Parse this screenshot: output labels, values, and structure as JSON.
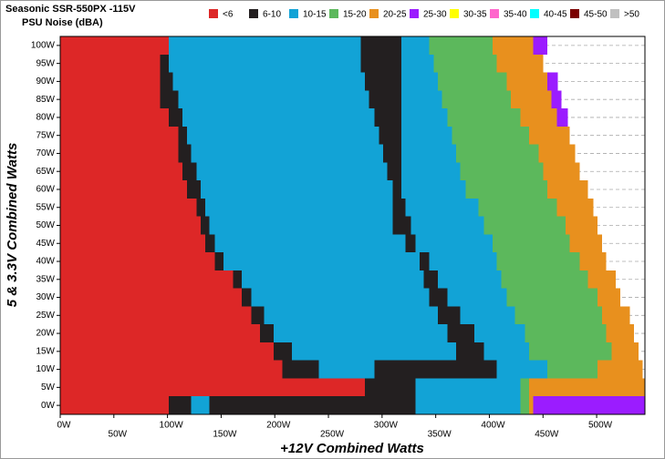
{
  "chart_data": {
    "type": "heatmap",
    "title": "Seasonic SSR-550PX -115V",
    "subtitle": "PSU Noise (dBA)",
    "x_label": "+12V Combined Watts",
    "y_label": "5 & 3.3V Combined Watts",
    "legend": [
      {
        "name": "<6",
        "color": "#dd2727"
      },
      {
        "name": "6-10",
        "color": "#231f20"
      },
      {
        "name": "10-15",
        "color": "#12a3d6"
      },
      {
        "name": "15-20",
        "color": "#5cb85c"
      },
      {
        "name": "20-25",
        "color": "#e8901e"
      },
      {
        "name": "25-30",
        "color": "#9b1cff"
      },
      {
        "name": "30-35",
        "color": "#ffff00"
      },
      {
        "name": "35-40",
        "color": "#ff66cc"
      },
      {
        "name": "40-45",
        "color": "#00ffff"
      },
      {
        "name": "45-50",
        "color": "#7b0000"
      },
      {
        "name": ">50",
        "color": "#c0c0c0"
      }
    ],
    "y": [
      100,
      95,
      90,
      85,
      80,
      75,
      70,
      65,
      60,
      55,
      50,
      45,
      40,
      35,
      30,
      25,
      20,
      15,
      10,
      5,
      0
    ],
    "row_height": 5,
    "segments": [
      {
        "class": 0,
        "values": [
          101,
          93,
          93,
          93,
          101,
          110,
          110,
          114,
          118,
          127,
          131,
          135,
          144,
          161,
          169,
          178,
          186,
          199,
          207,
          284,
          101
        ]
      },
      {
        "class": 1,
        "values": [
          0,
          8,
          12,
          17,
          13,
          8,
          12,
          13,
          13,
          8,
          8,
          9,
          8,
          8,
          9,
          12,
          13,
          17,
          34,
          47,
          21
        ]
      },
      {
        "class": 2,
        "values": [
          179,
          179,
          179,
          178,
          179,
          179,
          179,
          178,
          179,
          175,
          171,
          178,
          183,
          170,
          166,
          162,
          162,
          153,
          52,
          0,
          17
        ]
      },
      {
        "class": 1,
        "values": [
          38,
          38,
          34,
          30,
          25,
          21,
          17,
          13,
          8,
          12,
          17,
          9,
          9,
          13,
          17,
          21,
          25,
          26,
          114,
          0,
          192
        ]
      },
      {
        "class": 2,
        "values": [
          26,
          30,
          34,
          38,
          43,
          47,
          51,
          55,
          60,
          68,
          68,
          72,
          63,
          59,
          55,
          51,
          47,
          42,
          47,
          98,
          98
        ]
      },
      {
        "class": 3,
        "values": [
          59,
          59,
          64,
          64,
          68,
          72,
          77,
          77,
          76,
          73,
          76,
          72,
          77,
          81,
          85,
          81,
          76,
          77,
          47,
          8,
          8
        ]
      },
      {
        "class": 4,
        "values": [
          38,
          43,
          38,
          38,
          34,
          38,
          34,
          34,
          38,
          34,
          30,
          30,
          25,
          26,
          21,
          26,
          26,
          25,
          42,
          108,
          4
        ]
      },
      {
        "class": 5,
        "values": [
          13,
          0,
          10,
          9,
          10,
          0,
          0,
          0,
          0,
          0,
          0,
          0,
          0,
          0,
          0,
          0,
          0,
          0,
          0,
          0,
          104
        ]
      }
    ],
    "xlim": [
      0,
      545
    ],
    "ylim": [
      -2.5,
      102.5
    ],
    "xticks": [
      {
        "value": 0,
        "label": "0W"
      },
      {
        "value": 50,
        "label": "50W"
      },
      {
        "value": 100,
        "label": "100W"
      },
      {
        "value": 150,
        "label": "150W"
      },
      {
        "value": 200,
        "label": "200W"
      },
      {
        "value": 250,
        "label": "250W"
      },
      {
        "value": 300,
        "label": "300W"
      },
      {
        "value": 350,
        "label": "350W"
      },
      {
        "value": 400,
        "label": "400W"
      },
      {
        "value": 450,
        "label": "450W"
      },
      {
        "value": 500,
        "label": "500W"
      }
    ],
    "yticks": [
      {
        "value": 0,
        "label": "0W"
      },
      {
        "value": 5,
        "label": "5W"
      },
      {
        "value": 10,
        "label": "10W"
      },
      {
        "value": 15,
        "label": "15W"
      },
      {
        "value": 20,
        "label": "20W"
      },
      {
        "value": 25,
        "label": "25W"
      },
      {
        "value": 30,
        "label": "30W"
      },
      {
        "value": 35,
        "label": "35W"
      },
      {
        "value": 40,
        "label": "40W"
      },
      {
        "value": 45,
        "label": "45W"
      },
      {
        "value": 50,
        "label": "50W"
      },
      {
        "value": 55,
        "label": "55W"
      },
      {
        "value": 60,
        "label": "60W"
      },
      {
        "value": 65,
        "label": "65W"
      },
      {
        "value": 70,
        "label": "70W"
      },
      {
        "value": 75,
        "label": "75W"
      },
      {
        "value": 80,
        "label": "80W"
      },
      {
        "value": 85,
        "label": "85W"
      },
      {
        "value": 90,
        "label": "90W"
      },
      {
        "value": 95,
        "label": "95W"
      },
      {
        "value": 100,
        "label": "100W"
      }
    ],
    "grid": true
  }
}
